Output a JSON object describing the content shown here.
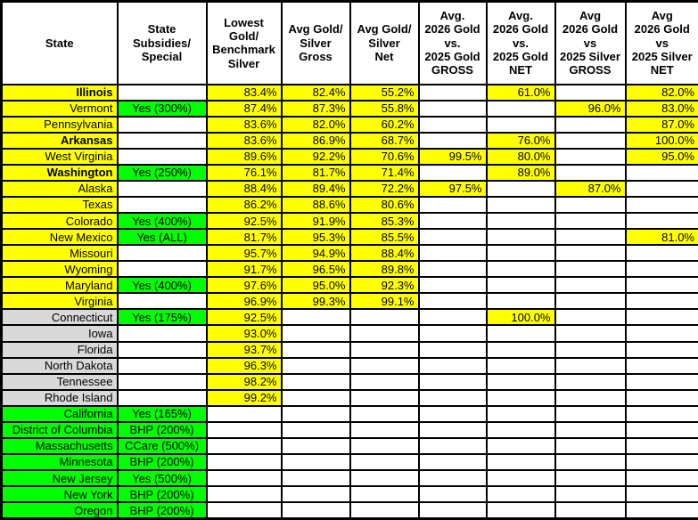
{
  "table": {
    "colors": {
      "yellow": "#FFFF00",
      "green": "#00FF00",
      "gray": "#D9D9D9",
      "white": "#FFFFFF",
      "border": "#000000"
    },
    "headers": [
      "State",
      "State\nSubsidies/\nSpecial",
      "Lowest\nGold/\nBenchmark\nSilver",
      "Avg Gold/\nSilver\nGross",
      "Avg Gold/\nSilver\nNet",
      "Avg.\n2026 Gold\nvs.\n2025 Gold\nGROSS",
      "Avg.\n2026 Gold\nvs.\n2025 Gold\nNET",
      "Avg\n2026 Gold\nvs\n2025 Silver\nGROSS",
      "Avg\n2026 Gold\nvs\n2025 Silver\nNET"
    ],
    "rows": [
      {
        "state": "Illinois",
        "bold": true,
        "row_type": "yellow",
        "subsidy": "",
        "values": [
          "83.4%",
          "82.4%",
          "55.2%",
          "",
          "61.0%",
          "",
          "82.0%"
        ]
      },
      {
        "state": "Vermont",
        "bold": false,
        "row_type": "yellow",
        "subsidy": "Yes (300%)",
        "values": [
          "87.4%",
          "87.3%",
          "55.8%",
          "",
          "",
          "96.0%",
          "83.0%"
        ]
      },
      {
        "state": "Pennsylvania",
        "bold": false,
        "row_type": "yellow",
        "subsidy": "",
        "values": [
          "83.6%",
          "82.0%",
          "60.2%",
          "",
          "",
          "",
          "87.0%"
        ]
      },
      {
        "state": "Arkansas",
        "bold": true,
        "row_type": "yellow",
        "subsidy": "",
        "values": [
          "83.6%",
          "86.9%",
          "68.7%",
          "",
          "76.0%",
          "",
          "100.0%"
        ]
      },
      {
        "state": "West Virginia",
        "bold": false,
        "row_type": "yellow",
        "subsidy": "",
        "values": [
          "89.6%",
          "92.2%",
          "70.6%",
          "99.5%",
          "80.0%",
          "",
          "95.0%"
        ]
      },
      {
        "state": "Washington",
        "bold": true,
        "row_type": "yellow",
        "subsidy": "Yes (250%)",
        "values": [
          "76.1%",
          "81.7%",
          "71.4%",
          "",
          "89.0%",
          "",
          ""
        ]
      },
      {
        "state": "Alaska",
        "bold": false,
        "row_type": "yellow",
        "subsidy": "",
        "values": [
          "88.4%",
          "89.4%",
          "72.2%",
          "97.5%",
          "",
          "87.0%",
          ""
        ]
      },
      {
        "state": "Texas",
        "bold": false,
        "row_type": "yellow",
        "subsidy": "",
        "values": [
          "86.2%",
          "88.6%",
          "80.6%",
          "",
          "",
          "",
          ""
        ]
      },
      {
        "state": "Colorado",
        "bold": false,
        "row_type": "yellow",
        "subsidy": "Yes (400%)",
        "values": [
          "92.5%",
          "91.9%",
          "85.3%",
          "",
          "",
          "",
          ""
        ]
      },
      {
        "state": "New Mexico",
        "bold": false,
        "row_type": "yellow",
        "subsidy": "Yes (ALL)",
        "values": [
          "81.7%",
          "95.3%",
          "85.5%",
          "",
          "",
          "",
          "81.0%"
        ]
      },
      {
        "state": "Missouri",
        "bold": false,
        "row_type": "yellow",
        "subsidy": "",
        "values": [
          "95.7%",
          "94.9%",
          "88.4%",
          "",
          "",
          "",
          ""
        ]
      },
      {
        "state": "Wyoming",
        "bold": false,
        "row_type": "yellow",
        "subsidy": "",
        "values": [
          "91.7%",
          "96.5%",
          "89.8%",
          "",
          "",
          "",
          ""
        ]
      },
      {
        "state": "Maryland",
        "bold": false,
        "row_type": "yellow",
        "subsidy": "Yes (400%)",
        "values": [
          "97.6%",
          "95.0%",
          "92.3%",
          "",
          "",
          "",
          ""
        ]
      },
      {
        "state": "Virginia",
        "bold": false,
        "row_type": "yellow",
        "subsidy": "",
        "values": [
          "96.9%",
          "99.3%",
          "99.1%",
          "",
          "",
          "",
          ""
        ]
      },
      {
        "state": "Connecticut",
        "bold": false,
        "row_type": "gray",
        "subsidy": "Yes (175%)",
        "values": [
          "92.5%",
          "",
          "",
          "",
          "100.0%",
          "",
          ""
        ]
      },
      {
        "state": "Iowa",
        "bold": false,
        "row_type": "gray",
        "subsidy": "",
        "values": [
          "93.0%",
          "",
          "",
          "",
          "",
          "",
          ""
        ]
      },
      {
        "state": "Florida",
        "bold": false,
        "row_type": "gray",
        "subsidy": "",
        "values": [
          "93.7%",
          "",
          "",
          "",
          "",
          "",
          ""
        ]
      },
      {
        "state": "North Dakota",
        "bold": false,
        "row_type": "gray",
        "subsidy": "",
        "values": [
          "96.3%",
          "",
          "",
          "",
          "",
          "",
          ""
        ]
      },
      {
        "state": "Tennessee",
        "bold": false,
        "row_type": "gray",
        "subsidy": "",
        "values": [
          "98.2%",
          "",
          "",
          "",
          "",
          "",
          ""
        ]
      },
      {
        "state": "Rhode Island",
        "bold": false,
        "row_type": "gray",
        "subsidy": "",
        "values": [
          "99.2%",
          "",
          "",
          "",
          "",
          "",
          ""
        ]
      },
      {
        "state": "California",
        "bold": false,
        "row_type": "green",
        "subsidy": "Yes (165%)",
        "values": [
          "",
          "",
          "",
          "",
          "",
          "",
          ""
        ]
      },
      {
        "state": "District of Columbia",
        "bold": false,
        "row_type": "green",
        "subsidy": "BHP (200%)",
        "values": [
          "",
          "",
          "",
          "",
          "",
          "",
          ""
        ]
      },
      {
        "state": "Massachusetts",
        "bold": false,
        "row_type": "green",
        "subsidy": "CCare (500%)",
        "values": [
          "",
          "",
          "",
          "",
          "",
          "",
          ""
        ]
      },
      {
        "state": "Minnesota",
        "bold": false,
        "row_type": "green",
        "subsidy": "BHP (200%)",
        "values": [
          "",
          "",
          "",
          "",
          "",
          "",
          ""
        ]
      },
      {
        "state": "New Jersey",
        "bold": false,
        "row_type": "green",
        "subsidy": "Yes (500%)",
        "values": [
          "",
          "",
          "",
          "",
          "",
          "",
          ""
        ]
      },
      {
        "state": "New York",
        "bold": false,
        "row_type": "green",
        "subsidy": "BHP (200%)",
        "values": [
          "",
          "",
          "",
          "",
          "",
          "",
          ""
        ]
      },
      {
        "state": "Oregon",
        "bold": false,
        "row_type": "green",
        "subsidy": "BHP (200%)",
        "values": [
          "",
          "",
          "",
          "",
          "",
          "",
          ""
        ]
      }
    ]
  }
}
